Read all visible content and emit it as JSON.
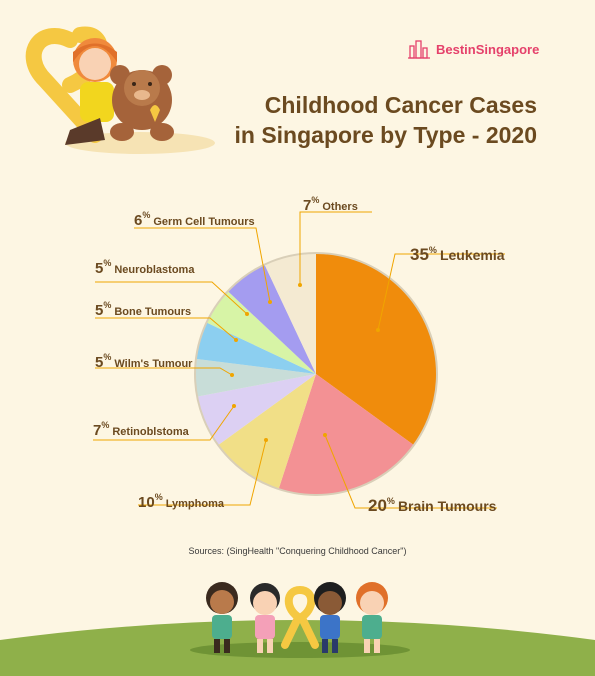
{
  "header": {
    "brand": "BestinSingapore",
    "title_line1": "Childhood Cancer Cases",
    "title_line2": "in Singapore by Type - 2020"
  },
  "source": "Sources: (SingHealth \"Conquering Childhood Cancer\")",
  "colors": {
    "title": "#6b4a20",
    "leader": "#f0a500",
    "brand": "#e5416b"
  },
  "chart_data": {
    "type": "pie",
    "title": "Childhood Cancer Cases in Singapore by Type - 2020",
    "unit": "%",
    "slices": [
      {
        "label": "Leukemia",
        "value": 35,
        "color": "#f08c0c"
      },
      {
        "label": "Brain Tumours",
        "value": 20,
        "color": "#f39194"
      },
      {
        "label": "Lymphoma",
        "value": 10,
        "color": "#f1df87"
      },
      {
        "label": "Retinoblstoma",
        "value": 7,
        "color": "#dcd0f3"
      },
      {
        "label": "Wilm's Tumour",
        "value": 5,
        "color": "#c8ddd8"
      },
      {
        "label": "Bone Tumours",
        "value": 5,
        "color": "#8ccff0"
      },
      {
        "label": "Neuroblastoma",
        "value": 5,
        "color": "#d7f4a6"
      },
      {
        "label": "Germ Cell Tumours",
        "value": 6,
        "color": "#a49cf0"
      },
      {
        "label": "Others",
        "value": 7,
        "color": "#f4ead2"
      }
    ]
  }
}
